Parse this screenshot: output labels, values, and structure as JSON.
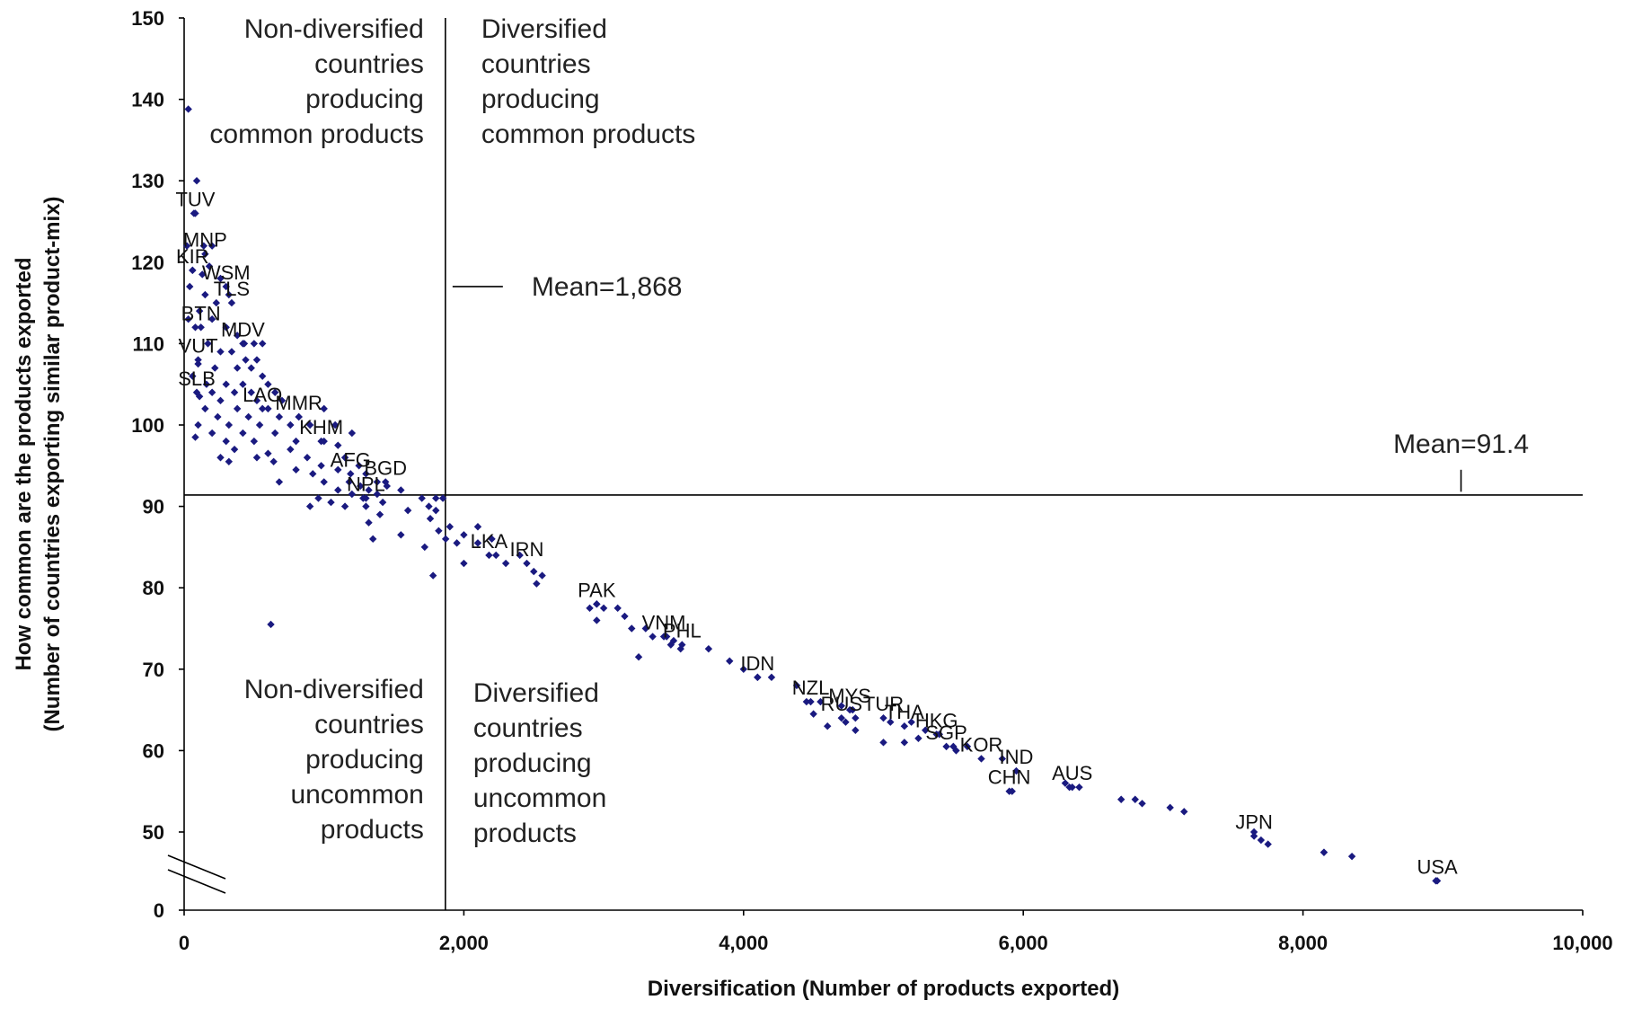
{
  "chart_data": {
    "type": "scatter",
    "title": "",
    "xlabel": "Diversification (Number of products exported)",
    "ylabel_lines": [
      "How common are the products exported",
      "(Number of countries exporting similar product-mix)"
    ],
    "xlim": [
      0,
      10000
    ],
    "ylim": [
      40,
      150
    ],
    "y_axis_break": true,
    "x_ticks": [
      0,
      2000,
      4000,
      6000,
      8000,
      10000
    ],
    "x_tick_labels": [
      "0",
      "2,000",
      "4,000",
      "6,000",
      "8,000",
      "10,000"
    ],
    "y_ticks": [
      50,
      60,
      70,
      80,
      90,
      100,
      110,
      120,
      130,
      140,
      150
    ],
    "y_tick_labels": [
      "50",
      "60",
      "70",
      "80",
      "90",
      "100",
      "110",
      "120",
      "130",
      "140",
      "150"
    ],
    "y_zero_label": "0",
    "marker_color": "#1a1a80",
    "mean_x": 1868,
    "mean_y": 91.4,
    "mean_x_label": "Mean=1,868",
    "mean_y_label": "Mean=91.4",
    "quadrant_labels": [
      {
        "lines": [
          "Non-diversified",
          "countries",
          "producing",
          "common products"
        ]
      },
      {
        "lines": [
          "Diversified",
          "countries",
          "producing",
          "common products"
        ]
      },
      {
        "lines": [
          "Non-diversified",
          "countries",
          "producing",
          "uncommon",
          "products"
        ]
      },
      {
        "lines": [
          "Diversified",
          "countries",
          "producing",
          "uncommon",
          "products"
        ]
      }
    ],
    "labeled_points": [
      {
        "label": "TUV",
        "x": 80,
        "y": 126
      },
      {
        "label": "MNP",
        "x": 150,
        "y": 121
      },
      {
        "label": "KIR",
        "x": 60,
        "y": 119
      },
      {
        "label": "WSM",
        "x": 300,
        "y": 117
      },
      {
        "label": "TLS",
        "x": 340,
        "y": 115
      },
      {
        "label": "BTN",
        "x": 120,
        "y": 112
      },
      {
        "label": "MDV",
        "x": 420,
        "y": 110
      },
      {
        "label": "VUT",
        "x": 100,
        "y": 108
      },
      {
        "label": "SLB",
        "x": 90,
        "y": 104
      },
      {
        "label": "LAO",
        "x": 560,
        "y": 102
      },
      {
        "label": "MMR",
        "x": 820,
        "y": 101
      },
      {
        "label": "KHM",
        "x": 980,
        "y": 98
      },
      {
        "label": "AFG",
        "x": 1190,
        "y": 94
      },
      {
        "label": "BGD",
        "x": 1440,
        "y": 93
      },
      {
        "label": "NPL",
        "x": 1300,
        "y": 91
      },
      {
        "label": "LKA",
        "x": 2180,
        "y": 84
      },
      {
        "label": "IRN",
        "x": 2450,
        "y": 83
      },
      {
        "label": "PAK",
        "x": 2950,
        "y": 78
      },
      {
        "label": "VNM",
        "x": 3430,
        "y": 74
      },
      {
        "label": "PHL",
        "x": 3560,
        "y": 73
      },
      {
        "label": "IDN",
        "x": 4100,
        "y": 69
      },
      {
        "label": "NZL",
        "x": 4480,
        "y": 66
      },
      {
        "label": "MYS",
        "x": 4760,
        "y": 65
      },
      {
        "label": "RUS",
        "x": 4700,
        "y": 64
      },
      {
        "label": "TUR",
        "x": 5000,
        "y": 64
      },
      {
        "label": "THA",
        "x": 5150,
        "y": 63
      },
      {
        "label": "HKG",
        "x": 5380,
        "y": 62
      },
      {
        "label": "SGP",
        "x": 5450,
        "y": 60.5
      },
      {
        "label": "KOR",
        "x": 5700,
        "y": 59
      },
      {
        "label": "IND",
        "x": 5950,
        "y": 57.5
      },
      {
        "label": "CHN",
        "x": 5900,
        "y": 55
      },
      {
        "label": "AUS",
        "x": 6350,
        "y": 55.5
      },
      {
        "label": "JPN",
        "x": 7650,
        "y": 49.5
      },
      {
        "label": "USA",
        "x": 8960,
        "y": 44
      }
    ],
    "points": [
      [
        30,
        138.8
      ],
      [
        90,
        130
      ],
      [
        70,
        126
      ],
      [
        20,
        122
      ],
      [
        140,
        122
      ],
      [
        200,
        122
      ],
      [
        180,
        119.5
      ],
      [
        60,
        119
      ],
      [
        130,
        118.5
      ],
      [
        260,
        118
      ],
      [
        40,
        117
      ],
      [
        320,
        116
      ],
      [
        150,
        116
      ],
      [
        230,
        115
      ],
      [
        110,
        114
      ],
      [
        30,
        113
      ],
      [
        200,
        113
      ],
      [
        300,
        112
      ],
      [
        80,
        112
      ],
      [
        380,
        111
      ],
      [
        500,
        110
      ],
      [
        430,
        110
      ],
      [
        560,
        110
      ],
      [
        170,
        110
      ],
      [
        260,
        109
      ],
      [
        340,
        109
      ],
      [
        440,
        108
      ],
      [
        520,
        108
      ],
      [
        100,
        107.5
      ],
      [
        220,
        107
      ],
      [
        380,
        107
      ],
      [
        480,
        107
      ],
      [
        560,
        106
      ],
      [
        60,
        106
      ],
      [
        160,
        105
      ],
      [
        300,
        105
      ],
      [
        420,
        105
      ],
      [
        600,
        105
      ],
      [
        200,
        104
      ],
      [
        360,
        104
      ],
      [
        480,
        104
      ],
      [
        650,
        104
      ],
      [
        110,
        103.5
      ],
      [
        260,
        103
      ],
      [
        520,
        103
      ],
      [
        700,
        103
      ],
      [
        150,
        102
      ],
      [
        380,
        102
      ],
      [
        600,
        102
      ],
      [
        240,
        101
      ],
      [
        460,
        101
      ],
      [
        680,
        101
      ],
      [
        820,
        101
      ],
      [
        1000,
        102
      ],
      [
        100,
        100
      ],
      [
        320,
        100
      ],
      [
        540,
        100
      ],
      [
        760,
        100
      ],
      [
        900,
        100
      ],
      [
        1080,
        100
      ],
      [
        200,
        99
      ],
      [
        420,
        99
      ],
      [
        650,
        99
      ],
      [
        1200,
        99
      ],
      [
        80,
        98.5
      ],
      [
        300,
        98
      ],
      [
        500,
        98
      ],
      [
        800,
        98
      ],
      [
        1000,
        98
      ],
      [
        1100,
        97.5
      ],
      [
        360,
        97
      ],
      [
        760,
        97
      ],
      [
        600,
        96.5
      ],
      [
        260,
        96
      ],
      [
        520,
        96
      ],
      [
        880,
        96
      ],
      [
        1150,
        96
      ],
      [
        320,
        95.5
      ],
      [
        640,
        95.5
      ],
      [
        980,
        95
      ],
      [
        1250,
        95
      ],
      [
        800,
        94.5
      ],
      [
        1100,
        94.5
      ],
      [
        920,
        94
      ],
      [
        1300,
        94
      ],
      [
        680,
        93
      ],
      [
        1000,
        93
      ],
      [
        1380,
        93
      ],
      [
        1180,
        93
      ],
      [
        1260,
        92.5
      ],
      [
        1450,
        92.5
      ],
      [
        1100,
        92
      ],
      [
        1320,
        92
      ],
      [
        1550,
        92
      ],
      [
        1380,
        91.5
      ],
      [
        1200,
        91.5
      ],
      [
        960,
        91
      ],
      [
        1280,
        91
      ],
      [
        1700,
        91
      ],
      [
        1800,
        91
      ],
      [
        1850,
        91
      ],
      [
        1050,
        90.5
      ],
      [
        1420,
        90.5
      ],
      [
        900,
        90
      ],
      [
        1150,
        90
      ],
      [
        1300,
        90
      ],
      [
        1750,
        90
      ],
      [
        1600,
        89.5
      ],
      [
        1800,
        89.5
      ],
      [
        1400,
        89
      ],
      [
        1760,
        88.5
      ],
      [
        1320,
        88
      ],
      [
        1900,
        87.5
      ],
      [
        2100,
        87.5
      ],
      [
        1820,
        87
      ],
      [
        1550,
        86.5
      ],
      [
        2000,
        86.5
      ],
      [
        1350,
        86
      ],
      [
        1870,
        86
      ],
      [
        2200,
        86
      ],
      [
        1950,
        85.5
      ],
      [
        2100,
        85.5
      ],
      [
        1720,
        85
      ],
      [
        2230,
        84
      ],
      [
        2400,
        84
      ],
      [
        2300,
        83
      ],
      [
        2000,
        83
      ],
      [
        2500,
        82
      ],
      [
        2560,
        81.5
      ],
      [
        1780,
        81.5
      ],
      [
        2520,
        80.5
      ],
      [
        2950,
        78
      ],
      [
        3000,
        77.5
      ],
      [
        3100,
        77.5
      ],
      [
        2900,
        77.5
      ],
      [
        3150,
        76.5
      ],
      [
        2950,
        76
      ],
      [
        3200,
        75
      ],
      [
        3300,
        75
      ],
      [
        3350,
        74
      ],
      [
        3450,
        74
      ],
      [
        3500,
        73.5
      ],
      [
        3250,
        71.5
      ],
      [
        3480,
        73
      ],
      [
        3550,
        72.5
      ],
      [
        3750,
        72.5
      ],
      [
        3900,
        71
      ],
      [
        4000,
        70
      ],
      [
        4100,
        69
      ],
      [
        4200,
        69
      ],
      [
        4380,
        68
      ],
      [
        4450,
        66
      ],
      [
        4550,
        66
      ],
      [
        4700,
        65.5
      ],
      [
        4780,
        65
      ],
      [
        4500,
        64.5
      ],
      [
        4800,
        64
      ],
      [
        5050,
        63.5
      ],
      [
        5200,
        63.5
      ],
      [
        5300,
        62.5
      ],
      [
        5400,
        62
      ],
      [
        4730,
        63.5
      ],
      [
        4600,
        63
      ],
      [
        4800,
        62.5
      ],
      [
        5250,
        61.5
      ],
      [
        5000,
        61
      ],
      [
        5150,
        61
      ],
      [
        5500,
        60.5
      ],
      [
        5600,
        60.5
      ],
      [
        5850,
        59
      ],
      [
        5520,
        60
      ],
      [
        6300,
        56
      ],
      [
        6330,
        55.5
      ],
      [
        6400,
        55.5
      ],
      [
        5920,
        55
      ],
      [
        6700,
        54
      ],
      [
        6800,
        54
      ],
      [
        6850,
        53.5
      ],
      [
        7050,
        53
      ],
      [
        7150,
        52.5
      ],
      [
        7650,
        50
      ],
      [
        7700,
        49
      ],
      [
        7750,
        48.5
      ],
      [
        8150,
        47.5
      ],
      [
        8150,
        47.5
      ],
      [
        8350,
        47
      ],
      [
        8950,
        44
      ],
      [
        620,
        75.5
      ]
    ]
  },
  "annotation_ids": {
    "break_marks": "axis-break-icon"
  }
}
